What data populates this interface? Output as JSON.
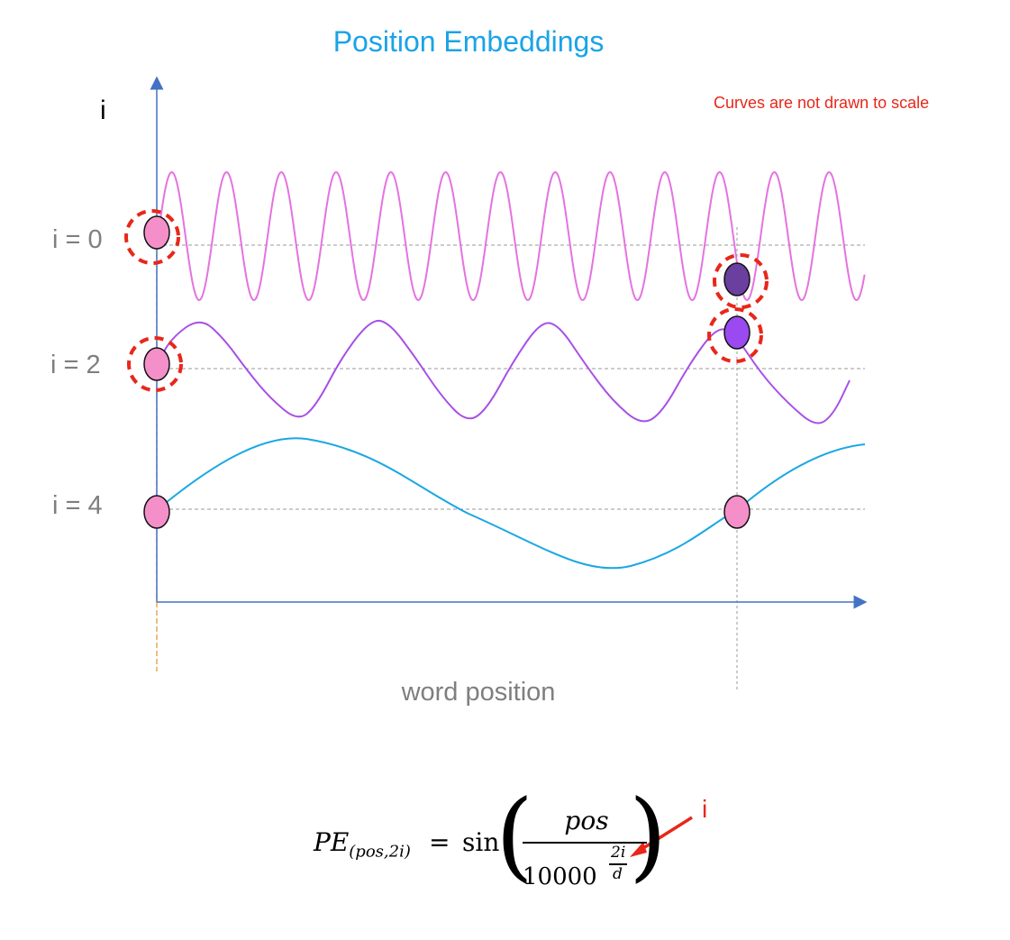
{
  "title": "Position Embeddings",
  "note": "Curves are not drawn to scale",
  "y_axis_label": "i",
  "x_axis_label": "word position",
  "rows": [
    {
      "label": "i = 0",
      "color": "#e473e0"
    },
    {
      "label": "i = 2",
      "color": "#a84fe6"
    },
    {
      "label": "i = 4",
      "color": "#1aa7e3"
    }
  ],
  "colors": {
    "title": "#1aa3e8",
    "note": "#e8271a",
    "axis": "#4472c4",
    "marker_fill": "#f48fc9",
    "marker_dark": "#6b3fa0",
    "marker_purple": "#9a4af0",
    "highlight_ring": "#e8271a",
    "guide": "#999999"
  },
  "formula": {
    "lhs_main": "PE",
    "lhs_sub": "(pos,2i)",
    "equals": "=",
    "func": "sin",
    "numerator": "pos",
    "denominator_base": "10000",
    "exponent_numerator": "2i",
    "exponent_denominator": "d",
    "pointer_label": "i"
  }
}
